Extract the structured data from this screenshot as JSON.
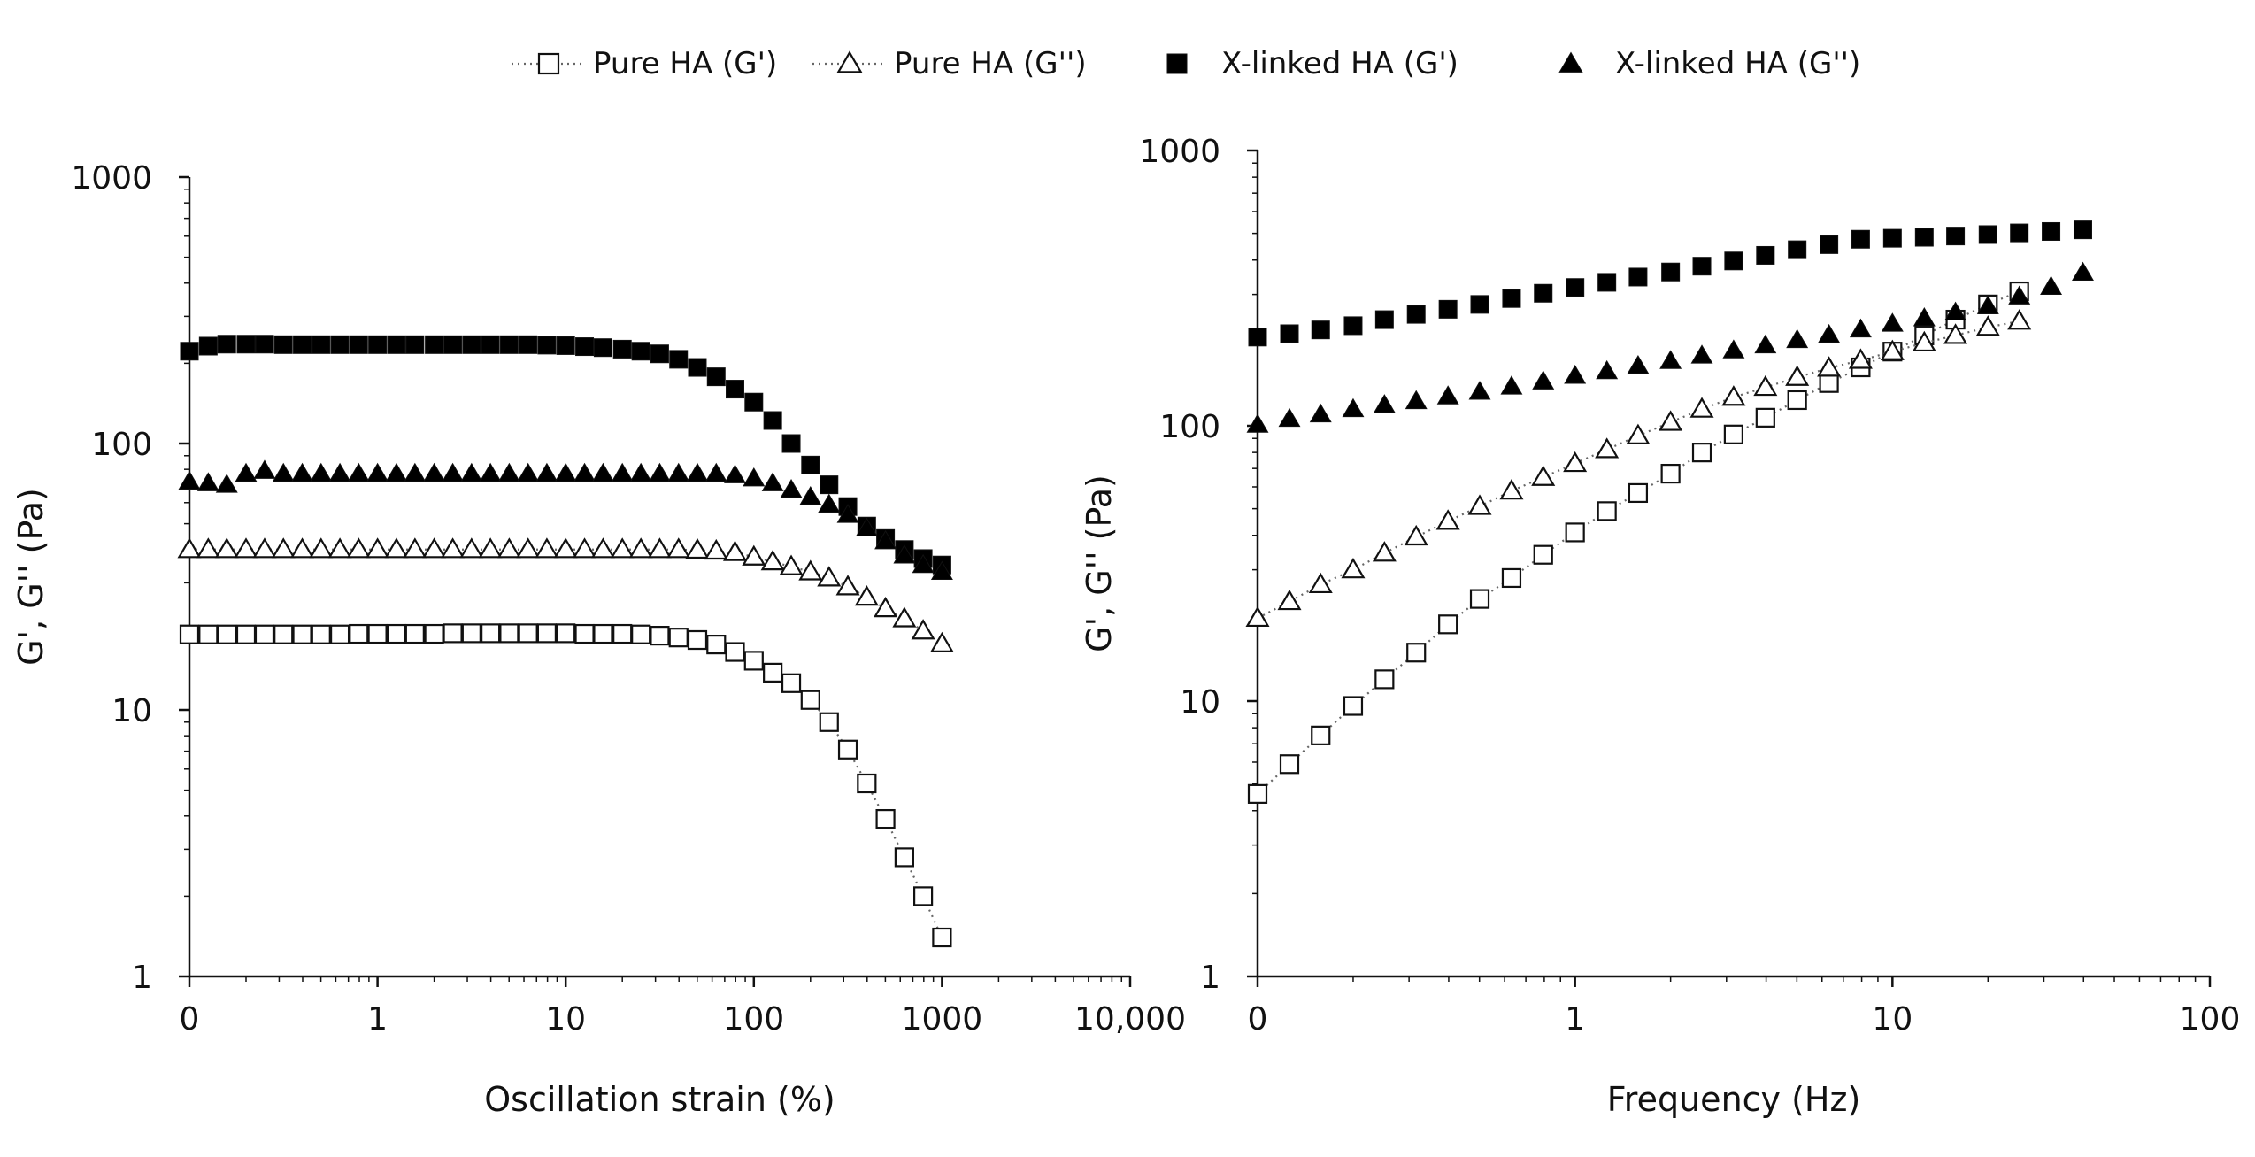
{
  "legend": [
    {
      "label": "Pure HA (G')",
      "marker": "square-open",
      "dotted": true
    },
    {
      "label": "Pure HA (G'')",
      "marker": "triangle-open",
      "dotted": true
    },
    {
      "label": "X-linked HA (G')",
      "marker": "square-filled",
      "dotted": false
    },
    {
      "label": "X-linked HA (G'')",
      "marker": "triangle-filled",
      "dotted": false
    }
  ],
  "colors": {
    "axis": "#111111",
    "marker_stroke": "#111111",
    "marker_fill": "#000000",
    "dotted_line": "#666666"
  },
  "chart_data": [
    {
      "type": "scatter",
      "title": "",
      "xlabel": "Oscillation strain (%)",
      "ylabel": "G', G'' (Pa)",
      "xscale": "log",
      "yscale": "log",
      "xlim": [
        0.1,
        10000
      ],
      "ylim": [
        1,
        1000
      ],
      "xticks": [
        0.1,
        1,
        10,
        100,
        1000,
        10000
      ],
      "xtick_labels": [
        "0",
        "1",
        "10",
        "100",
        "1000",
        "10,000"
      ],
      "yticks": [
        1,
        10,
        100,
        1000
      ],
      "ytick_labels": [
        "1",
        "10",
        "100",
        "1000"
      ],
      "x": [
        0.1,
        0.126,
        0.158,
        0.2,
        0.251,
        0.316,
        0.398,
        0.501,
        0.631,
        0.794,
        1,
        1.26,
        1.58,
        2,
        2.51,
        3.16,
        3.98,
        5.01,
        6.31,
        7.94,
        10,
        12.6,
        15.8,
        20,
        25.1,
        31.6,
        39.8,
        50.1,
        63.1,
        79.4,
        100,
        126,
        158,
        200,
        251,
        316,
        398,
        501,
        631,
        794,
        1000
      ],
      "series": [
        {
          "name": "Pure HA (G')",
          "marker": "square-open",
          "dotted": true,
          "values": [
            19.2,
            19.2,
            19.2,
            19.2,
            19.2,
            19.2,
            19.2,
            19.2,
            19.2,
            19.3,
            19.3,
            19.3,
            19.3,
            19.3,
            19.4,
            19.4,
            19.4,
            19.4,
            19.4,
            19.4,
            19.4,
            19.3,
            19.3,
            19.3,
            19.2,
            19.0,
            18.7,
            18.3,
            17.6,
            16.5,
            15.3,
            13.8,
            12.6,
            10.9,
            9.0,
            7.1,
            5.3,
            3.9,
            2.8,
            2.0,
            1.4
          ]
        },
        {
          "name": "Pure HA (G'')",
          "marker": "triangle-open",
          "dotted": true,
          "values": [
            40.0,
            40.0,
            40.0,
            40.0,
            40.0,
            40.0,
            40.0,
            40.0,
            40.0,
            40.0,
            40.0,
            40.0,
            40.0,
            40.0,
            40.0,
            40.0,
            40.0,
            40.0,
            40.0,
            40.0,
            40.0,
            40.0,
            40.0,
            40.0,
            40.0,
            40.0,
            40.0,
            39.8,
            39.5,
            39.0,
            37.5,
            36.0,
            34.5,
            33.0,
            31.3,
            29.0,
            26.5,
            24.0,
            22.0,
            19.8,
            17.7
          ]
        },
        {
          "name": "X-linked HA (G')",
          "marker": "square-filled",
          "dotted": false,
          "values": [
            222,
            232,
            236,
            236,
            236,
            235,
            235,
            235,
            235,
            235,
            235,
            235,
            235,
            235,
            235,
            235,
            235,
            235,
            235,
            234,
            233,
            231,
            229,
            226,
            222,
            217,
            207,
            193,
            178,
            160,
            143,
            122,
            100,
            83,
            70,
            58,
            49,
            44,
            40,
            37,
            35
          ]
        },
        {
          "name": "X-linked HA (G'')",
          "marker": "triangle-filled",
          "dotted": false,
          "values": [
            72,
            71,
            70,
            77,
            79,
            77,
            77,
            77,
            77,
            77,
            77,
            77,
            77,
            77,
            77,
            77,
            77,
            77,
            77,
            77,
            77,
            77,
            77,
            77,
            77,
            77,
            77,
            77,
            77,
            76,
            74,
            71,
            67,
            63,
            59,
            54,
            48,
            43,
            38,
            35,
            33
          ]
        }
      ]
    },
    {
      "type": "scatter",
      "title": "",
      "xlabel": "Frequency (Hz)",
      "ylabel": "G', G'' (Pa)",
      "xscale": "log",
      "yscale": "log",
      "xlim": [
        0.1,
        100
      ],
      "ylim": [
        1,
        1000
      ],
      "xticks": [
        0.1,
        1,
        10,
        100
      ],
      "xtick_labels": [
        "0",
        "1",
        "10",
        "100"
      ],
      "yticks": [
        1,
        10,
        100,
        1000
      ],
      "ytick_labels": [
        "1",
        "10",
        "100",
        "1000"
      ],
      "x": [
        0.1,
        0.126,
        0.158,
        0.2,
        0.251,
        0.316,
        0.398,
        0.501,
        0.631,
        0.794,
        1,
        1.26,
        1.58,
        2,
        2.51,
        3.16,
        3.98,
        5.01,
        6.31,
        7.94,
        10,
        12.6,
        15.8,
        20,
        25.1,
        31.6,
        39.8
      ],
      "series": [
        {
          "name": "Pure HA (G')",
          "marker": "square-open",
          "dotted": true,
          "values": [
            4.6,
            5.9,
            7.5,
            9.6,
            12.0,
            15.0,
            19.0,
            23.5,
            28.0,
            34.0,
            41.0,
            49.0,
            57.0,
            67.0,
            80.0,
            93.0,
            107,
            124,
            143,
            163,
            186,
            213,
            243,
            276,
            308,
            null,
            null
          ]
        },
        {
          "name": "Pure HA (G'')",
          "marker": "triangle-open",
          "dotted": true,
          "values": [
            20.0,
            23.0,
            26.5,
            30.0,
            34.5,
            39.5,
            45.0,
            51.0,
            58.0,
            65.0,
            73.0,
            82.0,
            92.0,
            103,
            115,
            127,
            138,
            150,
            162,
            173,
            186,
            200,
            213,
            228,
            240,
            null,
            null
          ]
        },
        {
          "name": "X-linked HA (G')",
          "marker": "square-filled",
          "dotted": false,
          "values": [
            210,
            216,
            223,
            231,
            243,
            254,
            265,
            276,
            290,
            303,
            318,
            332,
            347,
            362,
            380,
            397,
            416,
            436,
            455,
            476,
            480,
            484,
            489,
            495,
            502,
            508,
            515
          ]
        },
        {
          "name": "X-linked HA (G'')",
          "marker": "triangle-filled",
          "dotted": false,
          "values": [
            101,
            106,
            110,
            115,
            119,
            123,
            128,
            133,
            139,
            145,
            152,
            158,
            165,
            172,
            180,
            188,
            196,
            205,
            214,
            224,
            235,
            246,
            258,
            272,
            295,
            320,
            360
          ]
        }
      ]
    }
  ]
}
